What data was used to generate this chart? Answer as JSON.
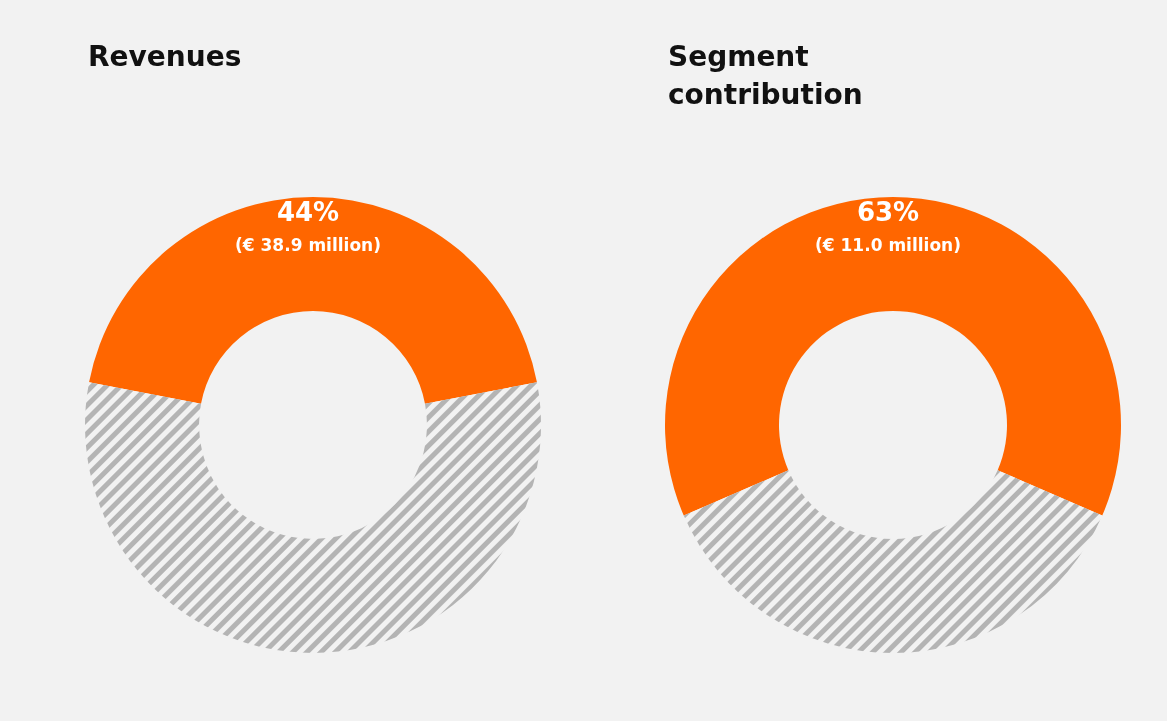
{
  "chart_data": [
    {
      "type": "donut",
      "title": "Revenues",
      "categories": [
        null,
        null
      ],
      "values": [
        44,
        56
      ],
      "colors": [
        "#ff6600",
        "#b4b4b4"
      ],
      "value_labels": [
        "44%\n(€ 38.9 million)",
        null
      ]
    },
    {
      "type": "donut",
      "title": "Segment contribution",
      "categories": [
        null,
        null
      ],
      "values": [
        63,
        37
      ],
      "colors": [
        "#ff6600",
        "#b4b4b4"
      ],
      "value_labels": [
        "63%\n(€ 11.0 million)",
        null
      ]
    }
  ]
}
